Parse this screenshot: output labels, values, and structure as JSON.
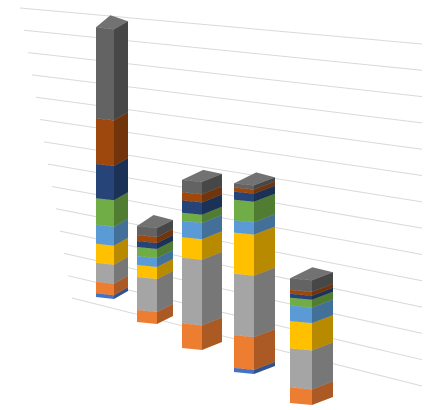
{
  "chart_data": {
    "type": "bar",
    "subtype": "3d-stacked-column",
    "title": "",
    "xlabel": "",
    "ylabel": "",
    "legend": "none",
    "grid": true,
    "categories": [
      "",
      "",
      "",
      "",
      ""
    ],
    "series": [
      {
        "color": "#4472c4",
        "values": [
          1.0,
          0.0,
          0.0,
          1.0,
          0.0
        ]
      },
      {
        "color": "#ed7d31",
        "values": [
          3.0,
          4.0,
          6.0,
          8.0,
          4.0
        ]
      },
      {
        "color": "#a5a5a5",
        "values": [
          5.0,
          11.0,
          16.0,
          15.0,
          10.0
        ]
      },
      {
        "color": "#ffc000",
        "values": [
          5.0,
          4.0,
          5.0,
          10.0,
          7.0
        ]
      },
      {
        "color": "#5b9bd5",
        "values": [
          5.0,
          3.0,
          4.0,
          3.0,
          4.0
        ]
      },
      {
        "color": "#70ad47",
        "values": [
          7.0,
          3.0,
          2.0,
          5.0,
          2.0
        ]
      },
      {
        "color": "#264478",
        "values": [
          9.0,
          2.0,
          3.0,
          2.0,
          1.0
        ]
      },
      {
        "color": "#9e480e",
        "values": [
          12.0,
          2.0,
          2.0,
          1.0,
          1.0
        ]
      },
      {
        "color": "#636363",
        "values": [
          24.0,
          3.0,
          3.0,
          1.0,
          3.0
        ]
      }
    ]
  }
}
